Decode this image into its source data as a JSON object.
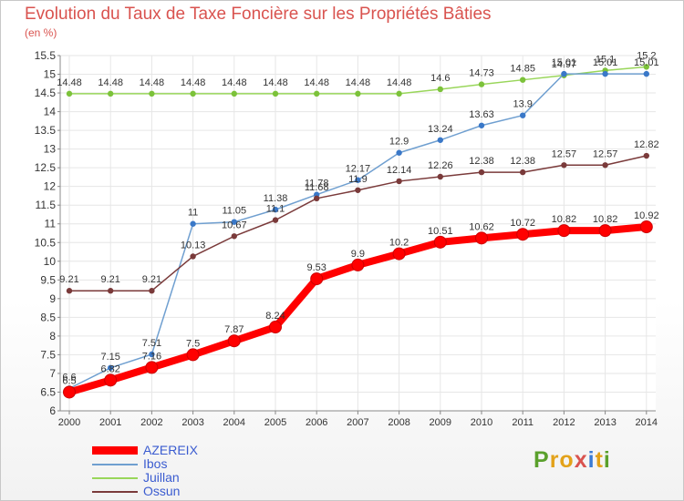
{
  "header": {
    "title": "Evolution du Taux de Taxe Foncière sur les Propriétés Bâties",
    "unit": "(en %)"
  },
  "chart_data": {
    "type": "line",
    "title": "Evolution du Taux de Taxe Foncière sur les Propriétés Bâties",
    "ylabel": "(en %)",
    "xlabel": "",
    "ylim": [
      6,
      15.5
    ],
    "yticks": [
      "6",
      "6.5",
      "7",
      "7.5",
      "8",
      "8.5",
      "9",
      "9.5",
      "10",
      "10.5",
      "11",
      "11.5",
      "12",
      "12.5",
      "13",
      "13.5",
      "14",
      "14.5",
      "15",
      "15.5"
    ],
    "categories": [
      "2000",
      "2001",
      "2002",
      "2003",
      "2004",
      "2005",
      "2006",
      "2007",
      "2008",
      "2009",
      "2010",
      "2011",
      "2012",
      "2013",
      "2014"
    ],
    "series": [
      {
        "name": "AZEREIX",
        "color": "#ff0000",
        "values": [
          6.5,
          6.82,
          7.16,
          7.5,
          7.87,
          8.24,
          9.53,
          9.9,
          10.2,
          10.51,
          10.62,
          10.72,
          10.82,
          10.82,
          10.92
        ],
        "labels": [
          "6.5",
          "6.82",
          "7.16",
          "7.5",
          "7.87",
          "8.24",
          "9.53",
          "9.9",
          "10.2",
          "10.51",
          "10.62",
          "10.72",
          "10.82",
          "10.82",
          "10.92"
        ]
      },
      {
        "name": "Ibos",
        "color": "#6f9fd0",
        "values": [
          6.6,
          7.15,
          7.51,
          11,
          11.05,
          11.38,
          11.78,
          12.17,
          12.9,
          13.24,
          13.63,
          13.9,
          15.01,
          15.01,
          15.01
        ],
        "labels": [
          "6.6",
          "7.15",
          "7.51",
          "11",
          "11.05",
          "11.38",
          "11.78",
          "12.17",
          "12.9",
          "13.24",
          "13.63",
          "13.9",
          "15.01",
          "15.01",
          "15.01"
        ]
      },
      {
        "name": "Juillan",
        "color": "#99d65a",
        "values": [
          14.48,
          14.48,
          14.48,
          14.48,
          14.48,
          14.48,
          14.48,
          14.48,
          14.48,
          14.6,
          14.73,
          14.85,
          14.97,
          15.1,
          15.2
        ],
        "labels": [
          "14.48",
          "14.48",
          "14.48",
          "14.48",
          "14.48",
          "14.48",
          "14.48",
          "14.48",
          "14.48",
          "14.6",
          "14.73",
          "14.85",
          "14.97",
          "15.1",
          "15.2"
        ]
      },
      {
        "name": "Ossun",
        "color": "#7a3a3a",
        "values": [
          9.21,
          9.21,
          9.21,
          10.13,
          10.67,
          11.1,
          11.68,
          11.9,
          12.14,
          12.26,
          12.38,
          12.38,
          12.57,
          12.57,
          12.82
        ],
        "labels": [
          "9.21",
          "9.21",
          "9.21",
          "10.13",
          "10.67",
          "11.1",
          "11.68",
          "11.9",
          "12.14",
          "12.26",
          "12.38",
          "12.38",
          "12.57",
          "12.57",
          "12.82"
        ]
      }
    ]
  },
  "legend": {
    "items": [
      "AZEREIX",
      "Ibos",
      "Juillan",
      "Ossun"
    ]
  },
  "logo": {
    "letters": [
      "P",
      "r",
      "o",
      "x",
      "i",
      "t",
      "i"
    ],
    "colors": [
      "#5aa02c",
      "#e3a21a",
      "#e3a21a",
      "#d9534f",
      "#3a7bd5",
      "#e3a21a",
      "#5aa02c"
    ]
  }
}
